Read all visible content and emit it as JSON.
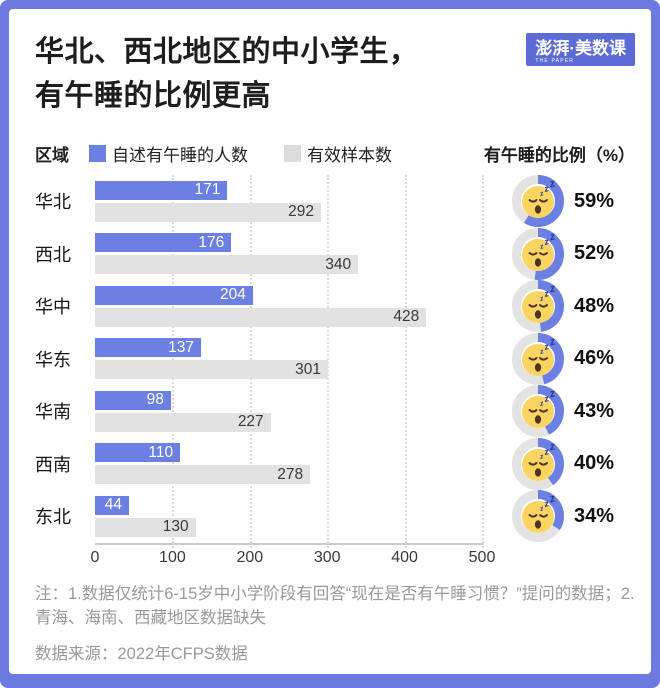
{
  "header": {
    "title_line1": "华北、西北地区的中小学生，",
    "title_line2": "有午睡的比例更高",
    "logo_main": "澎湃·美数课",
    "logo_sub": "THE PAPER"
  },
  "legend": {
    "region_label": "区域",
    "series1": "自述有午睡的人数",
    "series2": "有效样本数",
    "percent_header": "有午睡的比例（%）"
  },
  "chart_data": {
    "type": "bar",
    "orientation": "horizontal",
    "title": "华北、西北地区的中小学生，有午睡的比例更高",
    "categories": [
      "华北",
      "西北",
      "华中",
      "华东",
      "华南",
      "西南",
      "东北"
    ],
    "series": [
      {
        "name": "自述有午睡的人数",
        "color": "#6B80E2",
        "values": [
          171,
          176,
          204,
          137,
          98,
          110,
          44
        ]
      },
      {
        "name": "有效样本数",
        "color": "#E2E2E2",
        "values": [
          292,
          340,
          428,
          301,
          227,
          278,
          130
        ]
      }
    ],
    "percentages": [
      59,
      52,
      48,
      46,
      43,
      40,
      34
    ],
    "percent_suffix": "%",
    "xlim": [
      0,
      500
    ],
    "x_ticks": [
      0,
      100,
      200,
      300,
      400,
      500
    ],
    "grid": "dotted-vertical",
    "legend_position": "top"
  },
  "footer": {
    "note": "注：1.数据仅统计6-15岁中小学阶段有回答“现在是否有午睡习惯？”提问的数据；2.青海、海南、西藏地区数据缺失",
    "source": "数据来源：2022年CFPS数据"
  },
  "colors": {
    "accent": "#6B80E2",
    "frame": "#6B79E1",
    "bar_gray": "#E2E2E2",
    "donut_gray": "#E3E3E3",
    "emoji_yellow": "#FBD462",
    "emoji_feature": "#4A3424",
    "zzz_navy": "#2B3A9C"
  }
}
